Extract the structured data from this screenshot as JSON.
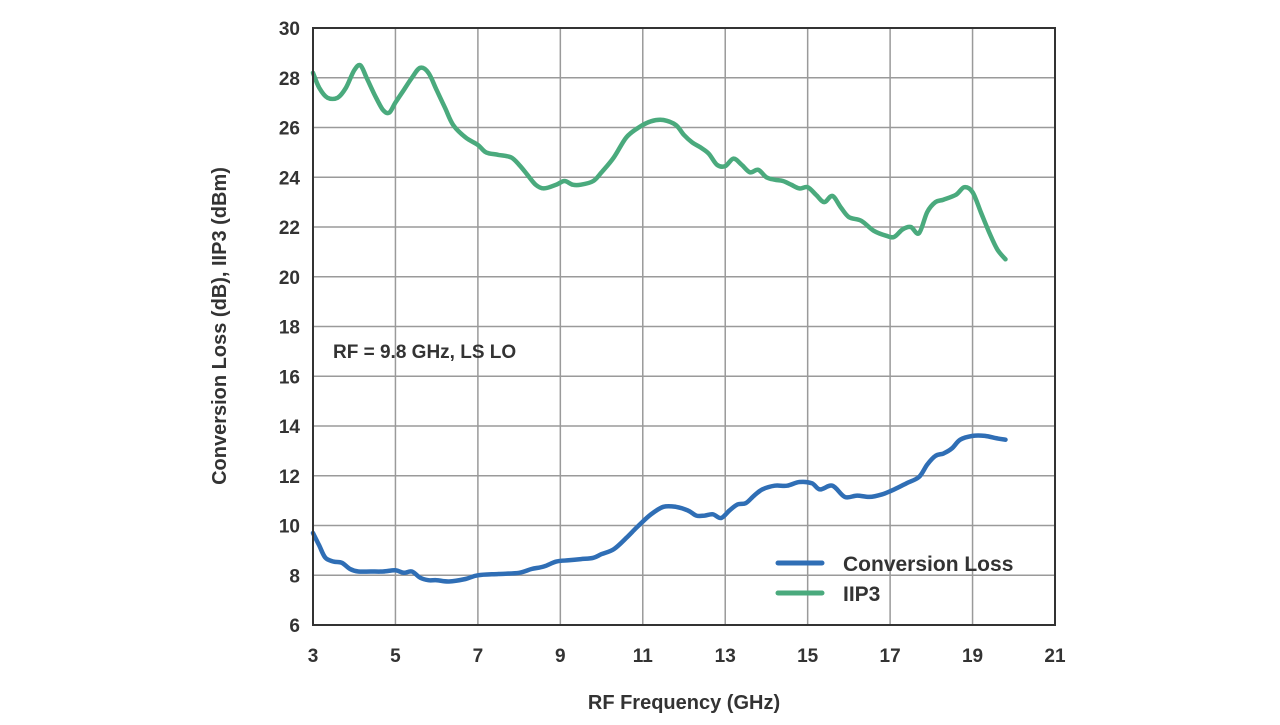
{
  "chart_data": {
    "type": "line",
    "title": "",
    "xlabel": "RF Frequency (GHz)",
    "ylabel": "Conversion Loss (dB), IIP3 (dBm)",
    "xlim": [
      3,
      21
    ],
    "ylim": [
      6,
      30
    ],
    "x_ticks": [
      "3",
      "5",
      "7",
      "9",
      "11",
      "13",
      "15",
      "17",
      "19",
      "21"
    ],
    "y_ticks": [
      "6",
      "8",
      "10",
      "12",
      "14",
      "16",
      "18",
      "20",
      "22",
      "24",
      "26",
      "28",
      "30"
    ],
    "grid": true,
    "annotation": "RF = 9.8 GHz, LS LO",
    "legend_position": "bottom-right",
    "series": [
      {
        "name": "Conversion Loss",
        "color": "#2f6eb5",
        "points": [
          [
            3.0,
            9.7
          ],
          [
            3.15,
            9.2
          ],
          [
            3.3,
            8.7
          ],
          [
            3.5,
            8.55
          ],
          [
            3.7,
            8.5
          ],
          [
            3.9,
            8.25
          ],
          [
            4.1,
            8.15
          ],
          [
            4.4,
            8.15
          ],
          [
            4.7,
            8.15
          ],
          [
            5.0,
            8.2
          ],
          [
            5.2,
            8.1
          ],
          [
            5.4,
            8.15
          ],
          [
            5.6,
            7.9
          ],
          [
            5.8,
            7.8
          ],
          [
            6.0,
            7.8
          ],
          [
            6.3,
            7.75
          ],
          [
            6.7,
            7.85
          ],
          [
            7.0,
            8.0
          ],
          [
            7.5,
            8.05
          ],
          [
            8.0,
            8.1
          ],
          [
            8.3,
            8.25
          ],
          [
            8.6,
            8.35
          ],
          [
            8.9,
            8.55
          ],
          [
            9.2,
            8.6
          ],
          [
            9.5,
            8.65
          ],
          [
            9.8,
            8.7
          ],
          [
            10.0,
            8.85
          ],
          [
            10.3,
            9.05
          ],
          [
            10.6,
            9.5
          ],
          [
            10.9,
            10.0
          ],
          [
            11.2,
            10.45
          ],
          [
            11.5,
            10.75
          ],
          [
            11.8,
            10.75
          ],
          [
            12.1,
            10.6
          ],
          [
            12.3,
            10.4
          ],
          [
            12.5,
            10.4
          ],
          [
            12.7,
            10.45
          ],
          [
            12.9,
            10.3
          ],
          [
            13.1,
            10.6
          ],
          [
            13.3,
            10.85
          ],
          [
            13.5,
            10.9
          ],
          [
            13.7,
            11.2
          ],
          [
            13.9,
            11.45
          ],
          [
            14.2,
            11.6
          ],
          [
            14.5,
            11.6
          ],
          [
            14.8,
            11.75
          ],
          [
            15.1,
            11.7
          ],
          [
            15.3,
            11.45
          ],
          [
            15.6,
            11.6
          ],
          [
            15.9,
            11.15
          ],
          [
            16.2,
            11.2
          ],
          [
            16.5,
            11.15
          ],
          [
            16.8,
            11.25
          ],
          [
            17.1,
            11.45
          ],
          [
            17.4,
            11.7
          ],
          [
            17.7,
            11.95
          ],
          [
            17.9,
            12.45
          ],
          [
            18.1,
            12.8
          ],
          [
            18.3,
            12.9
          ],
          [
            18.5,
            13.1
          ],
          [
            18.7,
            13.45
          ],
          [
            19.0,
            13.6
          ],
          [
            19.3,
            13.6
          ],
          [
            19.6,
            13.5
          ],
          [
            19.8,
            13.45
          ]
        ]
      },
      {
        "name": "IIP3",
        "color": "#4aaa7d",
        "points": [
          [
            3.0,
            28.2
          ],
          [
            3.15,
            27.6
          ],
          [
            3.35,
            27.2
          ],
          [
            3.6,
            27.2
          ],
          [
            3.8,
            27.6
          ],
          [
            4.0,
            28.3
          ],
          [
            4.15,
            28.5
          ],
          [
            4.3,
            28.0
          ],
          [
            4.5,
            27.3
          ],
          [
            4.7,
            26.7
          ],
          [
            4.85,
            26.6
          ],
          [
            5.0,
            27.0
          ],
          [
            5.2,
            27.5
          ],
          [
            5.4,
            28.0
          ],
          [
            5.6,
            28.4
          ],
          [
            5.8,
            28.2
          ],
          [
            6.0,
            27.5
          ],
          [
            6.2,
            26.8
          ],
          [
            6.4,
            26.1
          ],
          [
            6.7,
            25.6
          ],
          [
            7.0,
            25.3
          ],
          [
            7.2,
            25.0
          ],
          [
            7.5,
            24.9
          ],
          [
            7.8,
            24.8
          ],
          [
            8.0,
            24.5
          ],
          [
            8.2,
            24.1
          ],
          [
            8.4,
            23.7
          ],
          [
            8.6,
            23.55
          ],
          [
            8.9,
            23.7
          ],
          [
            9.1,
            23.85
          ],
          [
            9.3,
            23.7
          ],
          [
            9.5,
            23.7
          ],
          [
            9.8,
            23.85
          ],
          [
            10.0,
            24.2
          ],
          [
            10.3,
            24.8
          ],
          [
            10.6,
            25.6
          ],
          [
            10.9,
            26.0
          ],
          [
            11.2,
            26.25
          ],
          [
            11.5,
            26.3
          ],
          [
            11.8,
            26.1
          ],
          [
            12.0,
            25.7
          ],
          [
            12.2,
            25.4
          ],
          [
            12.4,
            25.2
          ],
          [
            12.6,
            24.95
          ],
          [
            12.8,
            24.5
          ],
          [
            13.0,
            24.45
          ],
          [
            13.2,
            24.75
          ],
          [
            13.4,
            24.5
          ],
          [
            13.6,
            24.2
          ],
          [
            13.8,
            24.3
          ],
          [
            14.0,
            24.0
          ],
          [
            14.2,
            23.9
          ],
          [
            14.4,
            23.85
          ],
          [
            14.6,
            23.7
          ],
          [
            14.8,
            23.55
          ],
          [
            15.0,
            23.6
          ],
          [
            15.2,
            23.3
          ],
          [
            15.4,
            23.0
          ],
          [
            15.6,
            23.25
          ],
          [
            15.8,
            22.8
          ],
          [
            16.0,
            22.4
          ],
          [
            16.3,
            22.25
          ],
          [
            16.6,
            21.85
          ],
          [
            16.9,
            21.65
          ],
          [
            17.1,
            21.6
          ],
          [
            17.3,
            21.9
          ],
          [
            17.5,
            22.0
          ],
          [
            17.7,
            21.75
          ],
          [
            17.9,
            22.6
          ],
          [
            18.1,
            23.0
          ],
          [
            18.3,
            23.1
          ],
          [
            18.6,
            23.3
          ],
          [
            18.8,
            23.6
          ],
          [
            19.0,
            23.4
          ],
          [
            19.2,
            22.6
          ],
          [
            19.4,
            21.8
          ],
          [
            19.6,
            21.1
          ],
          [
            19.8,
            20.7
          ]
        ]
      }
    ]
  }
}
